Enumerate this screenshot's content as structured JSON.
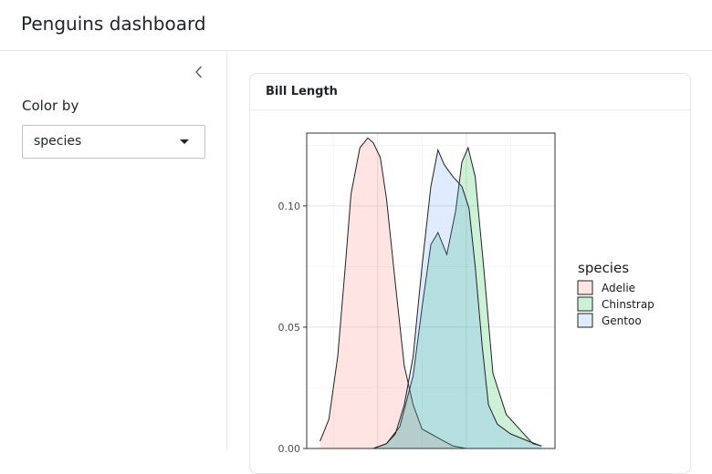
{
  "app": {
    "title": "Penguins dashboard"
  },
  "sidebar": {
    "collapse_icon": "chevron-left-icon",
    "color_by_label": "Color by",
    "color_by_value": "species"
  },
  "card": {
    "title": "Bill Length"
  },
  "chart_data": {
    "type": "area",
    "title": "",
    "xlabel": "",
    "ylabel": "",
    "ylim": [
      0,
      0.13
    ],
    "xlim": [
      32,
      60
    ],
    "y_ticks": [
      0.0,
      0.05,
      0.1
    ],
    "y_tick_labels": [
      "0.00",
      "0.05",
      "0.10"
    ],
    "grid": true,
    "legend_title": "species",
    "legend_position": "right",
    "series": [
      {
        "name": "Adelie",
        "color": "#f8766d",
        "x": [
          33.5,
          34.5,
          35.5,
          36.3,
          37.0,
          38.0,
          38.9,
          39.5,
          40.3,
          41.0,
          42.0,
          43.0,
          44.0,
          45.0,
          46.0,
          47.0,
          48.5,
          50.0
        ],
        "y": [
          0.003,
          0.012,
          0.038,
          0.073,
          0.105,
          0.124,
          0.128,
          0.126,
          0.12,
          0.103,
          0.068,
          0.034,
          0.018,
          0.008,
          0.006,
          0.004,
          0.001,
          0.0
        ]
      },
      {
        "name": "Chinstrap",
        "color": "#00ba38",
        "x": [
          39.5,
          41.0,
          42.5,
          44.0,
          45.0,
          46.0,
          46.8,
          47.8,
          48.8,
          49.5,
          50.2,
          51.0,
          52.0,
          53.0,
          54.5,
          56.0,
          57.5,
          58.5
        ],
        "y": [
          0.0,
          0.002,
          0.009,
          0.03,
          0.058,
          0.084,
          0.089,
          0.08,
          0.098,
          0.118,
          0.124,
          0.112,
          0.073,
          0.031,
          0.014,
          0.008,
          0.002,
          0.001
        ]
      },
      {
        "name": "Gentoo",
        "color": "#619cff",
        "x": [
          39.5,
          41.0,
          42.0,
          43.0,
          44.0,
          45.0,
          46.0,
          46.8,
          47.5,
          48.5,
          49.5,
          50.3,
          51.0,
          51.8,
          52.5,
          53.5,
          55.0,
          57.0,
          58.5
        ],
        "y": [
          0.0,
          0.002,
          0.006,
          0.018,
          0.038,
          0.075,
          0.108,
          0.123,
          0.117,
          0.112,
          0.108,
          0.099,
          0.075,
          0.042,
          0.018,
          0.01,
          0.006,
          0.003,
          0.001
        ]
      }
    ]
  }
}
